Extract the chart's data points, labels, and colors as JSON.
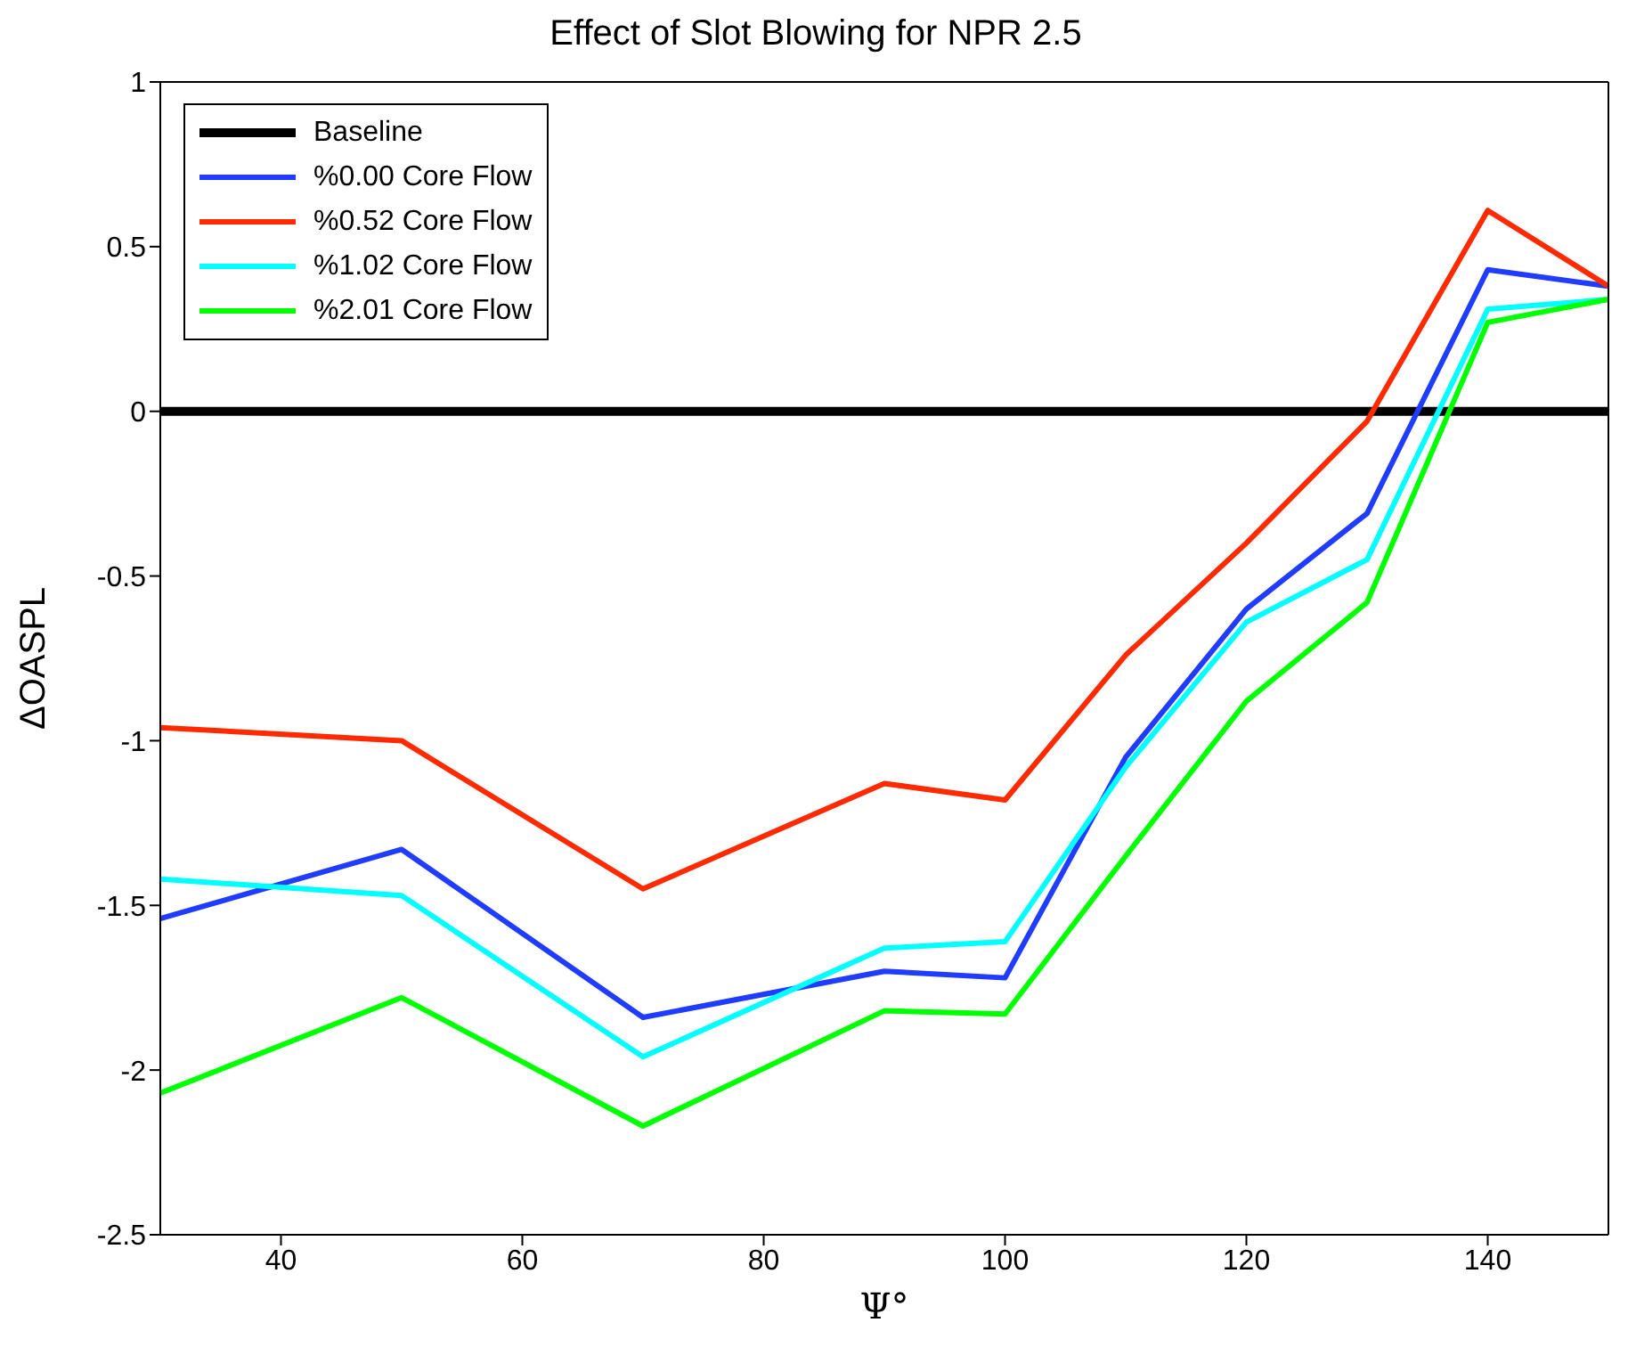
{
  "chart_data": {
    "type": "line",
    "title": "Effect of Slot Blowing for NPR 2.5",
    "xlabel": "Ψ°",
    "ylabel": "ΔOASPL",
    "x": [
      30,
      50,
      70,
      90,
      100,
      110,
      120,
      130,
      140,
      150
    ],
    "series": [
      {
        "name": "Baseline",
        "color": "#000000",
        "values": [
          0,
          0,
          0,
          0,
          0,
          0,
          0,
          0,
          0,
          0
        ]
      },
      {
        "name": "%0.00 Core Flow",
        "color": "#1f3cff",
        "values": [
          -1.54,
          -1.33,
          -1.84,
          -1.7,
          -1.72,
          -1.05,
          -0.6,
          -0.31,
          0.43,
          0.38
        ]
      },
      {
        "name": "%0.52 Core Flow",
        "color": "#ff2a00",
        "values": [
          -0.96,
          -1.0,
          -1.45,
          -1.13,
          -1.18,
          -0.74,
          -0.4,
          -0.03,
          0.61,
          0.38
        ]
      },
      {
        "name": "%1.02 Core Flow",
        "color": "#00ffff",
        "values": [
          -1.42,
          -1.47,
          -1.96,
          -1.63,
          -1.61,
          -1.08,
          -0.64,
          -0.45,
          0.31,
          0.34
        ]
      },
      {
        "name": "%2.01 Core Flow",
        "color": "#00ff00",
        "values": [
          -2.07,
          -1.78,
          -2.17,
          -1.82,
          -1.83,
          -1.35,
          -0.88,
          -0.58,
          0.27,
          0.34
        ]
      }
    ],
    "xlim": [
      30,
      150
    ],
    "xticks": [
      40,
      60,
      80,
      100,
      120,
      140
    ],
    "ylim": [
      -2.5,
      1
    ],
    "yticks": [
      -2.5,
      -2,
      -1.5,
      -1,
      -0.5,
      0,
      0.5,
      1
    ],
    "grid": false,
    "legend": "top left",
    "marker": "none",
    "line_style": "solid"
  }
}
